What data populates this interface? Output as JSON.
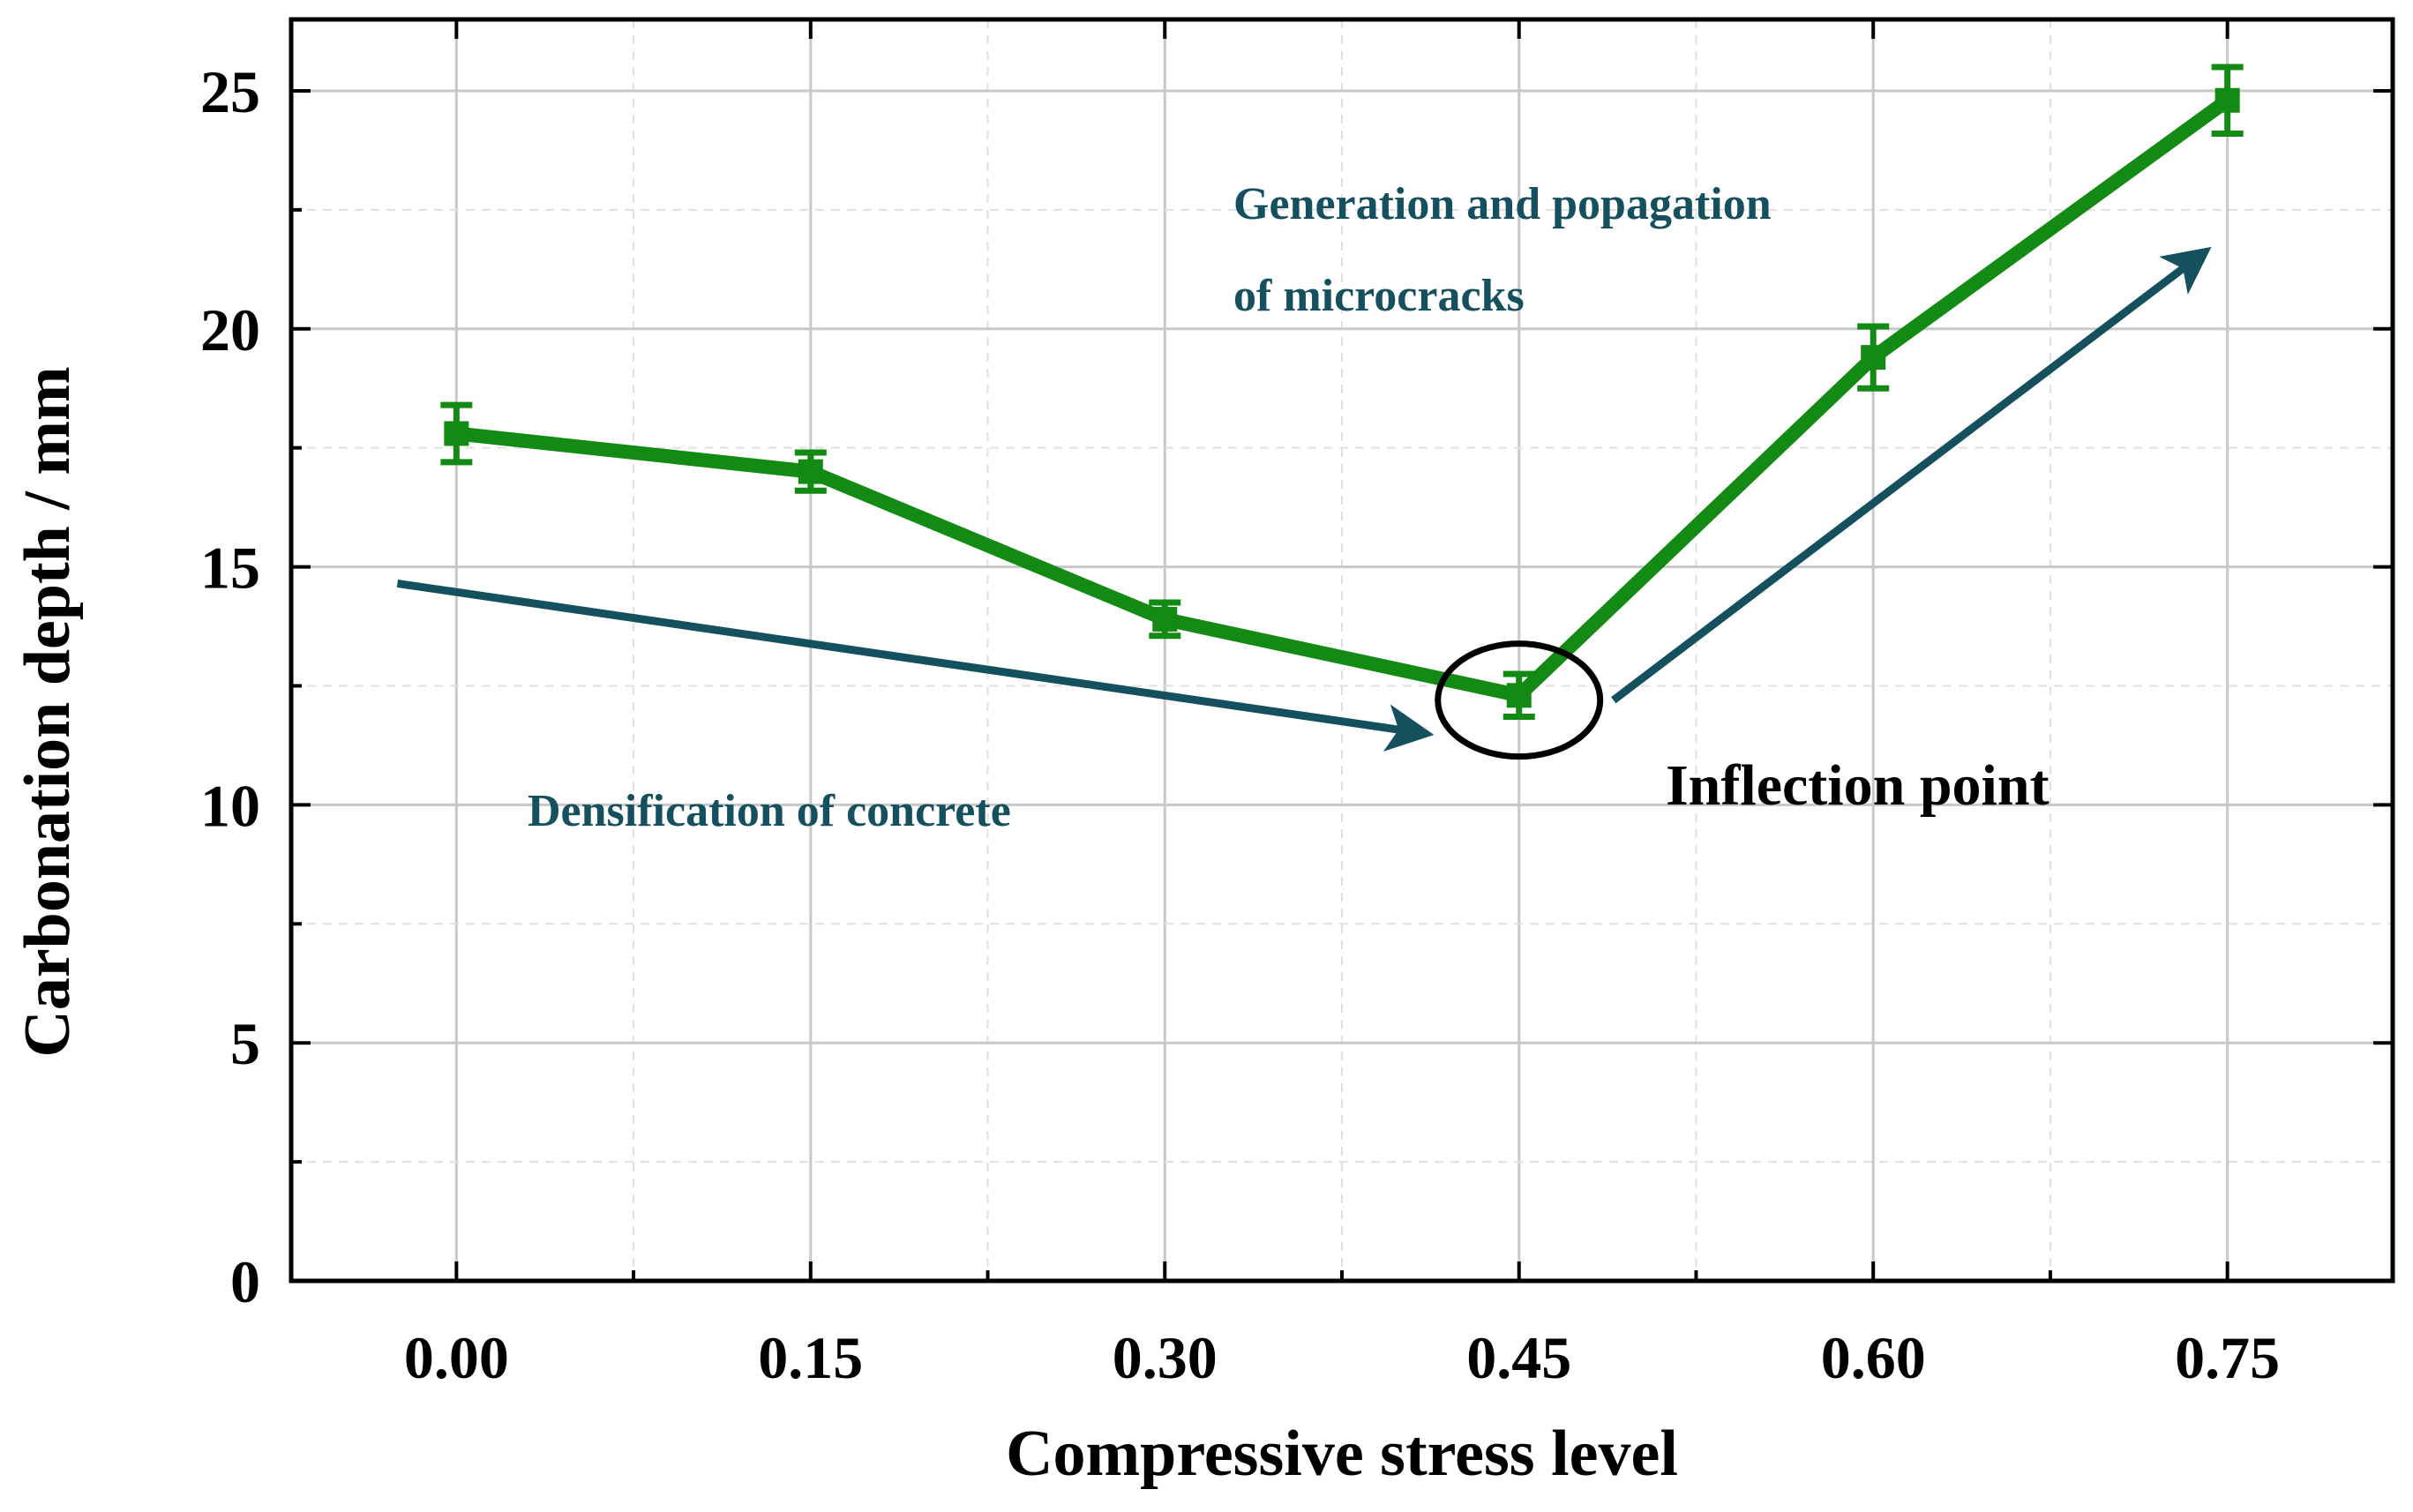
{
  "chart_data": {
    "type": "line",
    "title": "",
    "xlabel": "Compressive stress level",
    "ylabel": "Carbonation depth / mm",
    "x": [
      0.0,
      0.15,
      0.3,
      0.45,
      0.6,
      0.75
    ],
    "x_tick_labels": [
      "0.00",
      "0.15",
      "0.30",
      "0.45",
      "0.60",
      "0.75"
    ],
    "y_ticks": [
      0,
      5,
      10,
      15,
      20,
      25
    ],
    "y_tick_labels": [
      "0",
      "5",
      "10",
      "15",
      "20",
      "25"
    ],
    "xlim": [
      -0.07,
      0.82
    ],
    "ylim": [
      0,
      26.5
    ],
    "grid": true,
    "series": [
      {
        "name": "Carbonation depth",
        "color": "#138a13",
        "values": [
          17.8,
          17.0,
          13.9,
          12.3,
          19.4,
          24.8
        ],
        "errors": [
          0.6,
          0.4,
          0.35,
          0.45,
          0.65,
          0.7
        ]
      }
    ],
    "annotations": {
      "densification": "Densification of concrete",
      "generation_line1": "Generation and popagation",
      "generation_line2": "of microcracks",
      "inflection": "Inflection point"
    },
    "annotation_color": "#14505e",
    "arrows": [
      {
        "from": [
          -0.025,
          14.65
        ],
        "to": [
          0.41,
          11.5
        ]
      },
      {
        "from": [
          0.49,
          12.2
        ],
        "to": [
          0.74,
          21.6
        ]
      }
    ],
    "inflection_marker": {
      "x": 0.45,
      "y": 12.2
    }
  }
}
